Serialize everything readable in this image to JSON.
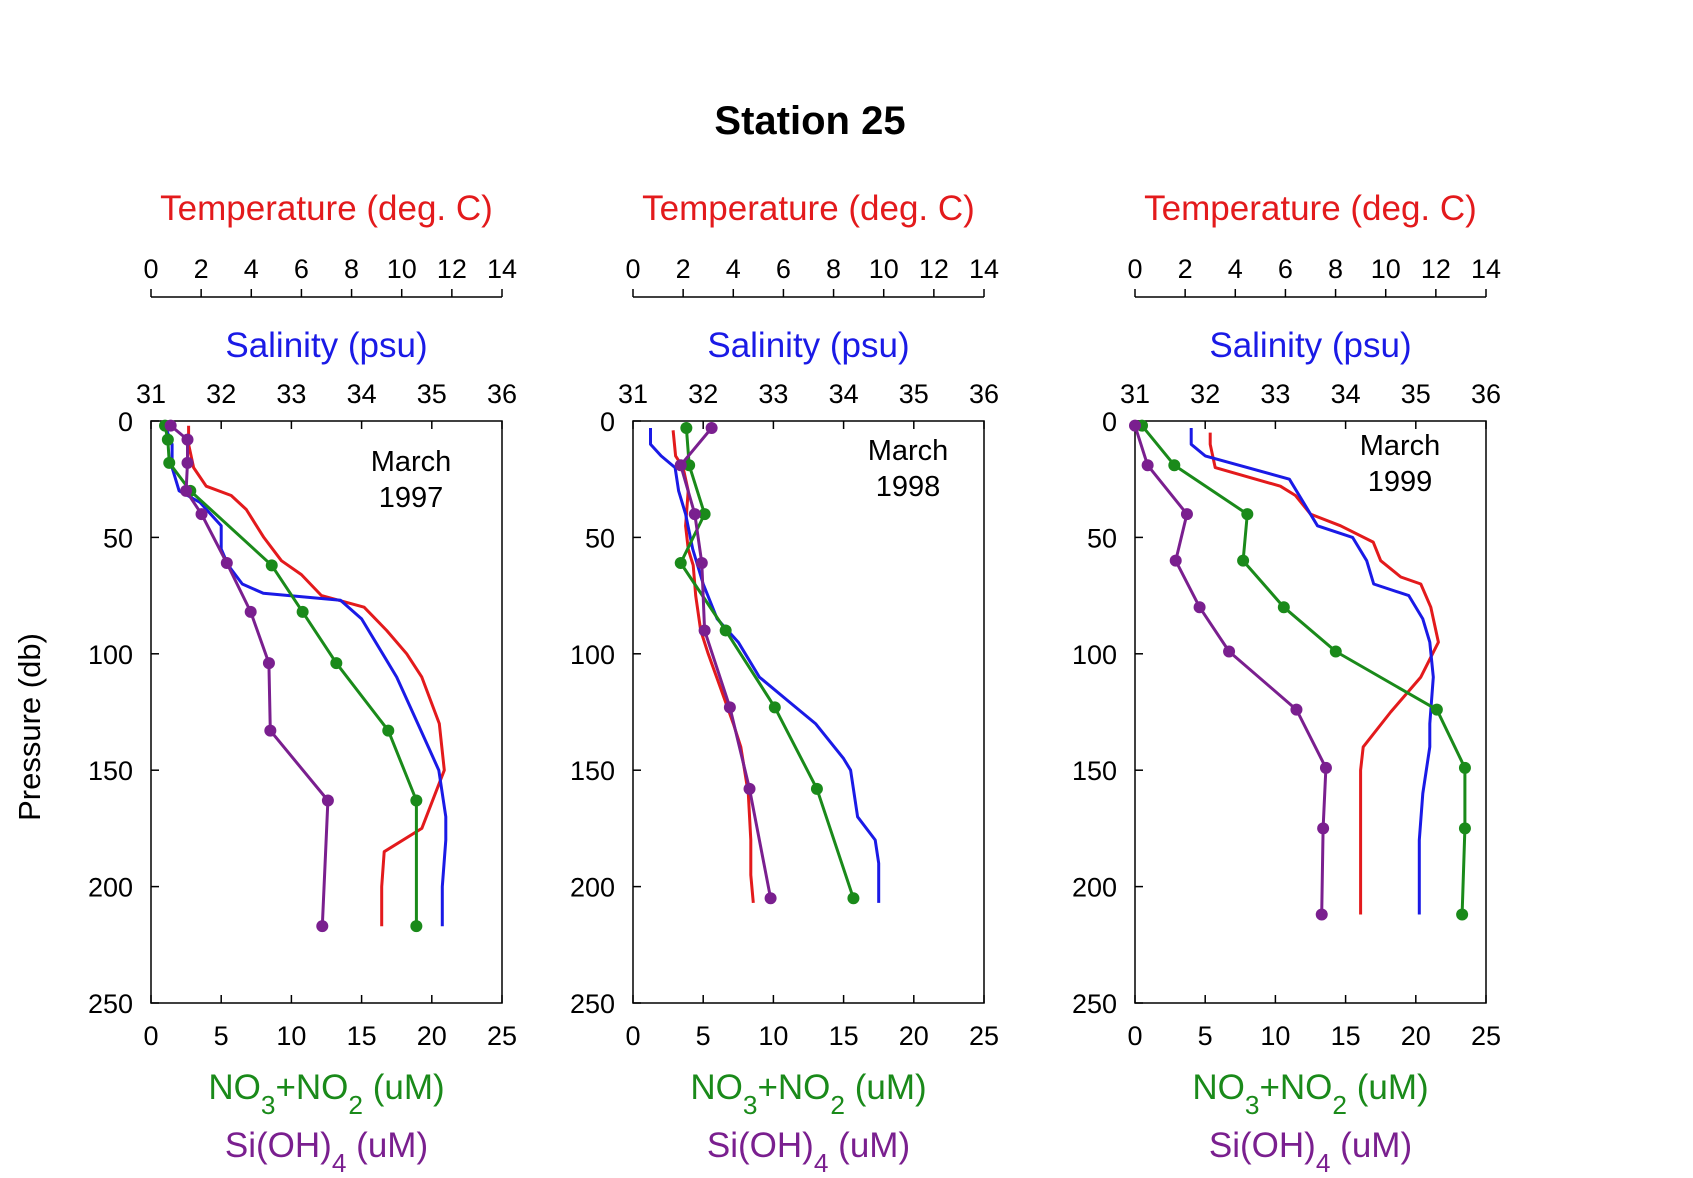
{
  "title": "Station 25",
  "y_axis_label": "Pressure (db)",
  "colors": {
    "temperature": "#e31a1c",
    "salinity": "#1a1ae6",
    "nitrate": "#1a8a1a",
    "silicate": "#7a1f8f",
    "axis": "#000000"
  },
  "axis_labels": {
    "temperature": "Temperature (deg. C)",
    "salinity": "Salinity (psu)",
    "nitrate": "NO3+NO2 (uM)",
    "silicate": "Si(OH)4 (uM)"
  },
  "chart_data": [
    {
      "type": "line",
      "annotation": [
        "March",
        "1997"
      ],
      "ylim": [
        0,
        250
      ],
      "y_ticks": [
        0,
        50,
        100,
        150,
        200,
        250
      ],
      "y_reversed": true,
      "temperature_axis": {
        "range": [
          0,
          14
        ],
        "ticks": [
          0,
          2,
          4,
          6,
          8,
          10,
          12,
          14
        ]
      },
      "salinity_axis": {
        "range": [
          31,
          36
        ],
        "ticks": [
          31,
          32,
          33,
          34,
          35,
          36
        ]
      },
      "nutrient_axis": {
        "range": [
          0,
          25
        ],
        "ticks": [
          0,
          5,
          10,
          15,
          20,
          25
        ]
      },
      "series": [
        {
          "name": "Temperature",
          "key": "temperature",
          "axis": "temperature",
          "markers": false,
          "x": [
            1.5,
            1.5,
            1.7,
            2.2,
            3.2,
            3.8,
            4.5,
            5.2,
            6.0,
            6.8,
            8.5,
            9.4,
            10.2,
            10.8,
            11.5,
            11.7,
            10.8,
            9.3,
            9.2,
            9.2
          ],
          "y": [
            2,
            10,
            20,
            28,
            32,
            38,
            50,
            60,
            66,
            75,
            80,
            90,
            100,
            110,
            130,
            150,
            175,
            185,
            200,
            217
          ]
        },
        {
          "name": "Salinity",
          "key": "salinity",
          "axis": "salinity",
          "markers": false,
          "x": [
            31.2,
            31.3,
            31.3,
            31.4,
            31.7,
            32.0,
            32.0,
            32.1,
            32.3,
            32.6,
            33.7,
            34.0,
            34.3,
            34.5,
            34.8,
            34.95,
            35.1,
            35.2,
            35.2,
            35.15,
            35.15
          ],
          "y": [
            2,
            10,
            20,
            30,
            35,
            45,
            55,
            62,
            70,
            74,
            77,
            85,
            100,
            110,
            130,
            140,
            150,
            170,
            180,
            200,
            217
          ]
        },
        {
          "name": "NO3+NO2",
          "key": "nitrate",
          "axis": "nutrient",
          "markers": true,
          "x": [
            1.0,
            1.2,
            1.3,
            2.8,
            8.6,
            10.8,
            13.2,
            16.9,
            18.9,
            18.9
          ],
          "y": [
            2,
            8,
            18,
            30,
            62,
            82,
            104,
            133,
            163,
            217
          ]
        },
        {
          "name": "Si(OH)4",
          "key": "silicate",
          "axis": "nutrient",
          "markers": true,
          "x": [
            1.4,
            2.6,
            2.6,
            2.5,
            3.6,
            5.4,
            7.1,
            8.4,
            8.5,
            12.6,
            12.2
          ],
          "y": [
            2,
            8,
            18,
            30,
            40,
            61,
            82,
            104,
            133,
            163,
            217
          ]
        }
      ]
    },
    {
      "type": "line",
      "annotation": [
        "March",
        "1998"
      ],
      "ylim": [
        0,
        250
      ],
      "y_ticks": [
        0,
        50,
        100,
        150,
        200,
        250
      ],
      "y_reversed": true,
      "temperature_axis": {
        "range": [
          0,
          14
        ],
        "ticks": [
          0,
          2,
          4,
          6,
          8,
          10,
          12,
          14
        ]
      },
      "salinity_axis": {
        "range": [
          31,
          36
        ],
        "ticks": [
          31,
          32,
          33,
          34,
          35,
          36
        ]
      },
      "nutrient_axis": {
        "range": [
          0,
          25
        ],
        "ticks": [
          0,
          5,
          10,
          15,
          20,
          25
        ]
      },
      "series": [
        {
          "name": "Temperature",
          "key": "temperature",
          "axis": "temperature",
          "markers": false,
          "x": [
            1.6,
            1.7,
            2.0,
            2.2,
            2.1,
            2.2,
            2.4,
            2.5,
            2.7,
            3.0,
            3.5,
            4.0,
            4.3,
            4.6,
            4.7,
            4.7,
            4.8
          ],
          "y": [
            4,
            15,
            20,
            30,
            45,
            55,
            62,
            75,
            90,
            100,
            115,
            130,
            140,
            160,
            180,
            195,
            207
          ]
        },
        {
          "name": "Salinity",
          "key": "salinity",
          "axis": "salinity",
          "markers": false,
          "x": [
            31.25,
            31.25,
            31.4,
            31.6,
            31.65,
            31.75,
            31.85,
            32.0,
            32.2,
            32.5,
            32.8,
            33.2,
            33.6,
            34.0,
            34.1,
            34.2,
            34.45,
            34.5,
            34.5
          ],
          "y": [
            3,
            10,
            15,
            20,
            30,
            40,
            55,
            70,
            85,
            95,
            110,
            120,
            130,
            145,
            150,
            170,
            180,
            190,
            207
          ]
        },
        {
          "name": "NO3+NO2",
          "key": "nitrate",
          "axis": "nutrient",
          "markers": true,
          "x": [
            3.8,
            4.0,
            5.1,
            3.4,
            6.6,
            10.1,
            13.1,
            15.7
          ],
          "y": [
            3,
            19,
            40,
            61,
            90,
            123,
            158,
            205
          ]
        },
        {
          "name": "Si(OH)4",
          "key": "silicate",
          "axis": "nutrient",
          "markers": true,
          "x": [
            5.6,
            3.4,
            4.4,
            4.9,
            5.1,
            6.9,
            8.3,
            9.8
          ],
          "y": [
            3,
            19,
            40,
            61,
            90,
            123,
            158,
            205
          ]
        }
      ]
    },
    {
      "type": "line",
      "annotation": [
        "March",
        "1999"
      ],
      "ylim": [
        0,
        250
      ],
      "y_ticks": [
        0,
        50,
        100,
        150,
        200,
        250
      ],
      "y_reversed": true,
      "temperature_axis": {
        "range": [
          0,
          14
        ],
        "ticks": [
          0,
          2,
          4,
          6,
          8,
          10,
          12,
          14
        ]
      },
      "salinity_axis": {
        "range": [
          31,
          36
        ],
        "ticks": [
          31,
          32,
          33,
          34,
          35,
          36
        ]
      },
      "nutrient_axis": {
        "range": [
          0,
          25
        ],
        "ticks": [
          0,
          5,
          10,
          15,
          20,
          25
        ]
      },
      "series": [
        {
          "name": "Temperature",
          "key": "temperature",
          "axis": "temperature",
          "markers": false,
          "x": [
            3.0,
            3.0,
            3.2,
            5.8,
            6.4,
            7.0,
            8.2,
            9.5,
            9.8,
            10.6,
            11.4,
            11.8,
            12.1,
            11.4,
            10.2,
            9.1,
            9.0,
            9.0,
            9.0
          ],
          "y": [
            5,
            10,
            20,
            28,
            32,
            40,
            45,
            52,
            60,
            67,
            70,
            80,
            95,
            110,
            125,
            140,
            150,
            180,
            212
          ]
        },
        {
          "name": "Salinity",
          "key": "salinity",
          "axis": "salinity",
          "markers": false,
          "x": [
            31.8,
            31.8,
            32.0,
            33.2,
            33.4,
            33.6,
            34.1,
            34.3,
            34.4,
            34.9,
            35.1,
            35.2,
            35.25,
            35.2,
            35.2,
            35.1,
            35.05,
            35.05
          ],
          "y": [
            3,
            10,
            15,
            25,
            35,
            45,
            50,
            60,
            70,
            75,
            85,
            95,
            110,
            130,
            140,
            160,
            180,
            212
          ]
        },
        {
          "name": "NO3+NO2",
          "key": "nitrate",
          "axis": "nutrient",
          "markers": true,
          "x": [
            0.5,
            2.8,
            8.0,
            7.7,
            10.6,
            14.3,
            21.5,
            23.5,
            23.5,
            23.3
          ],
          "y": [
            2,
            19,
            40,
            60,
            80,
            99,
            124,
            149,
            175,
            212
          ]
        },
        {
          "name": "Si(OH)4",
          "key": "silicate",
          "axis": "nutrient",
          "markers": true,
          "x": [
            0.0,
            0.9,
            3.7,
            2.9,
            4.6,
            6.7,
            11.5,
            13.6,
            13.4,
            13.3
          ],
          "y": [
            2,
            19,
            40,
            60,
            80,
            99,
            124,
            149,
            175,
            212
          ]
        }
      ]
    }
  ]
}
